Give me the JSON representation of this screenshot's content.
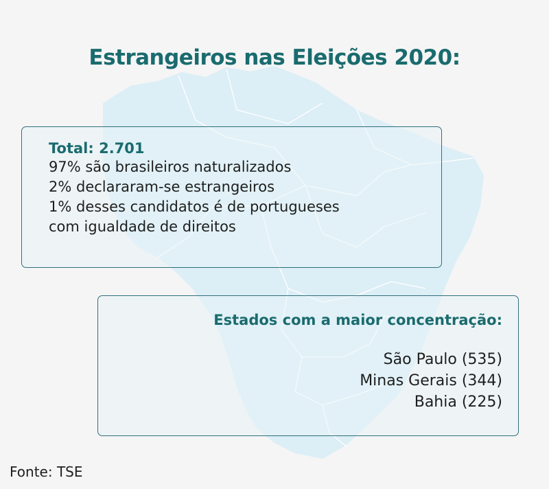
{
  "title": "Estrangeiros nas Eleições 2020:",
  "total_card": {
    "heading": "Total: 2.701",
    "lines": [
      "97% são brasileiros naturalizados",
      "2% declararam-se estrangeiros",
      "1% desses candidatos é de portugueses",
      "com igualdade de direitos"
    ]
  },
  "states_card": {
    "heading": "Estados com a maior concentração:",
    "states": [
      "São Paulo (535)",
      "Minas Gerais (344)",
      "Bahia (225)"
    ]
  },
  "source": "Fonte: TSE",
  "colors": {
    "accent": "#1a6b6e",
    "background": "#f5f5f5",
    "map": "#dceef6",
    "text": "#1e1e1e"
  }
}
